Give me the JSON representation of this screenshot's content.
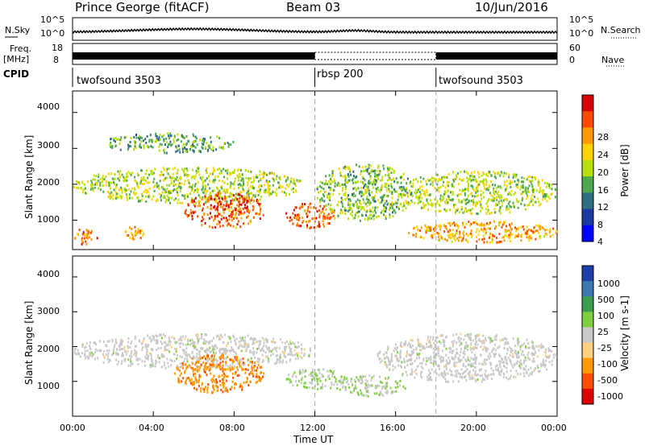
{
  "header": {
    "station": "Prince George (fitACF)",
    "beam": "Beam 03",
    "date": "10/Jun/2016"
  },
  "strips": {
    "nsky_label": "N.Sky",
    "nsky_ticks": [
      "10^5",
      "10^0"
    ],
    "nsearch_label": "N.Search",
    "nsearch_ticks": [
      "10^5",
      "10^0"
    ],
    "freq_label_top": "Freq.",
    "freq_label_bottom": "[MHz]",
    "freq_ticks": [
      "18",
      "8"
    ],
    "nave_label": "Nave",
    "nave_ticks": [
      "60",
      "0"
    ],
    "cpid_label": "CPID",
    "cpid_segments": [
      {
        "name": "twofsound 3503",
        "start_hour": 0,
        "end_hour": 12
      },
      {
        "name": "rbsp 200",
        "start_hour": 12,
        "end_hour": 18
      },
      {
        "name": "twofsound 3503",
        "start_hour": 18,
        "end_hour": 24
      }
    ]
  },
  "chart_data": [
    {
      "type": "heatmap",
      "name": "power",
      "ylabel": "Slant Range [km]",
      "xlabel": "",
      "xlim": [
        0,
        24
      ],
      "ylim": [
        180,
        4600
      ],
      "yticks": [
        "4000",
        "3000",
        "2000",
        "1000"
      ],
      "colorbar": {
        "label": "Power [dB]",
        "tick_labels": [
          "28",
          "24",
          "20",
          "16",
          "12",
          "8",
          "4"
        ],
        "colors": [
          "#d80000",
          "#ff4a00",
          "#ff9a00",
          "#ffd400",
          "#b8e000",
          "#4ea84e",
          "#2f6e80",
          "#1a3aa0",
          "#0000ff"
        ]
      },
      "echo_regions": [
        {
          "hour_start": 1.5,
          "hour_end": 8.0,
          "range_start": 2900,
          "range_end": 3450,
          "level": 12
        },
        {
          "hour_start": 0.0,
          "hour_end": 11.5,
          "range_start": 1500,
          "range_end": 2500,
          "level": 16
        },
        {
          "hour_start": 5.5,
          "hour_end": 9.5,
          "range_start": 800,
          "range_end": 1800,
          "level": 26
        },
        {
          "hour_start": 0.0,
          "hour_end": 1.2,
          "range_start": 350,
          "range_end": 800,
          "level": 24
        },
        {
          "hour_start": 2.5,
          "hour_end": 3.5,
          "range_start": 450,
          "range_end": 850,
          "level": 22
        },
        {
          "hour_start": 10.5,
          "hour_end": 13.0,
          "range_start": 800,
          "range_end": 1500,
          "level": 26
        },
        {
          "hour_start": 12.0,
          "hour_end": 17.0,
          "range_start": 1000,
          "range_end": 2600,
          "level": 14
        },
        {
          "hour_start": 16.0,
          "hour_end": 24.0,
          "range_start": 1200,
          "range_end": 2400,
          "level": 16
        },
        {
          "hour_start": 16.5,
          "hour_end": 24.0,
          "range_start": 400,
          "range_end": 1000,
          "level": 22
        }
      ]
    },
    {
      "type": "heatmap",
      "name": "velocity",
      "ylabel": "Slant Range [km]",
      "xlabel": "Time UT",
      "xlim": [
        0,
        24
      ],
      "ylim": [
        0,
        4600
      ],
      "yticks": [
        "4000",
        "3000",
        "2000",
        "1000"
      ],
      "xtick_labels": [
        "00:00",
        "04:00",
        "08:00",
        "12:00",
        "16:00",
        "20:00",
        "00:00"
      ],
      "colorbar": {
        "label": "Velocity [m s-1]",
        "tick_labels": [
          "1000",
          "500",
          "100",
          "25",
          "-25",
          "-100",
          "-500",
          "-1000"
        ],
        "colors": [
          "#1f3fa8",
          "#3c78b0",
          "#3c9c50",
          "#7ed040",
          "#c8c8c8",
          "#ffd080",
          "#ff9a00",
          "#ff5000",
          "#e00000"
        ]
      },
      "echo_regions": [
        {
          "hour_start": 0.0,
          "hour_end": 12.0,
          "range_start": 1400,
          "range_end": 2400,
          "velocity": 0
        },
        {
          "hour_start": 5.0,
          "hour_end": 9.5,
          "range_start": 700,
          "range_end": 1800,
          "velocity": -600
        },
        {
          "hour_start": 10.5,
          "hour_end": 13.5,
          "range_start": 800,
          "range_end": 1400,
          "velocity": 150
        },
        {
          "hour_start": 13.0,
          "hour_end": 16.5,
          "range_start": 600,
          "range_end": 1200,
          "velocity": 100
        },
        {
          "hour_start": 15.0,
          "hour_end": 24.0,
          "range_start": 1000,
          "range_end": 2400,
          "velocity": 0
        }
      ]
    }
  ]
}
